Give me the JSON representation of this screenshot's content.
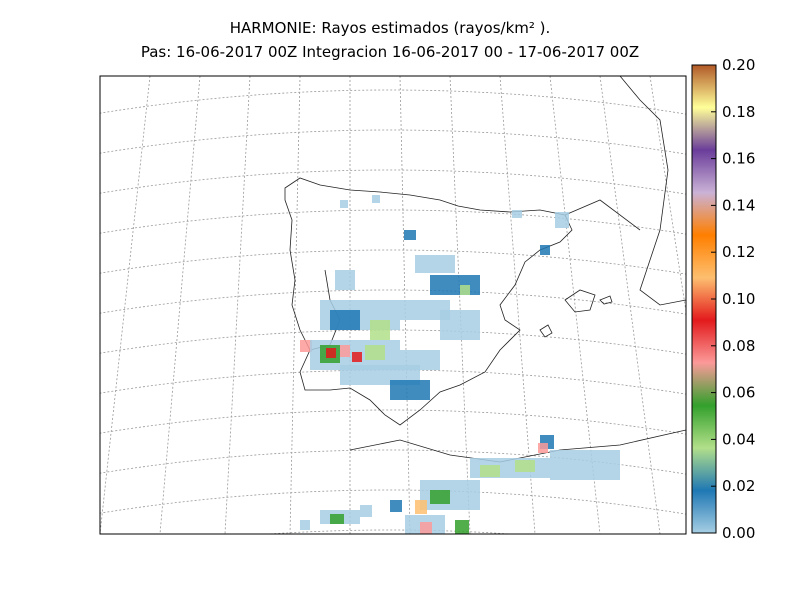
{
  "chart_data": {
    "type": "map",
    "title": "HARMONIE: Rayos estimados  (rayos/km² ).",
    "subtitle": "Pas: 16-06-2017 00Z Integracion 16-06-2017 00 - 17-06-2017 00Z",
    "colorbar": {
      "ylim": [
        0,
        0.2
      ],
      "yticks": [
        {
          "value": 0,
          "label": "0.00"
        },
        {
          "value": 0.02,
          "label": "0.02"
        },
        {
          "value": 0.04,
          "label": "0.04"
        },
        {
          "value": 0.06,
          "label": "0.06"
        },
        {
          "value": 0.08,
          "label": "0.08"
        },
        {
          "value": 0.1,
          "label": "0.10"
        },
        {
          "value": 0.12,
          "label": "0.12"
        },
        {
          "value": 0.14,
          "label": "0.14"
        },
        {
          "value": 0.16,
          "label": "0.16"
        },
        {
          "value": 0.18,
          "label": "0.18"
        },
        {
          "value": 0.2,
          "label": "0.20"
        }
      ],
      "colors": [
        "#a6cee3",
        "#1f78b4",
        "#b2df8a",
        "#33a02c",
        "#fb9a99",
        "#e31a1c",
        "#fdbf6f",
        "#ff7f00",
        "#cab2d6",
        "#6a3d9a",
        "#ffff99",
        "#b15928"
      ]
    }
  }
}
